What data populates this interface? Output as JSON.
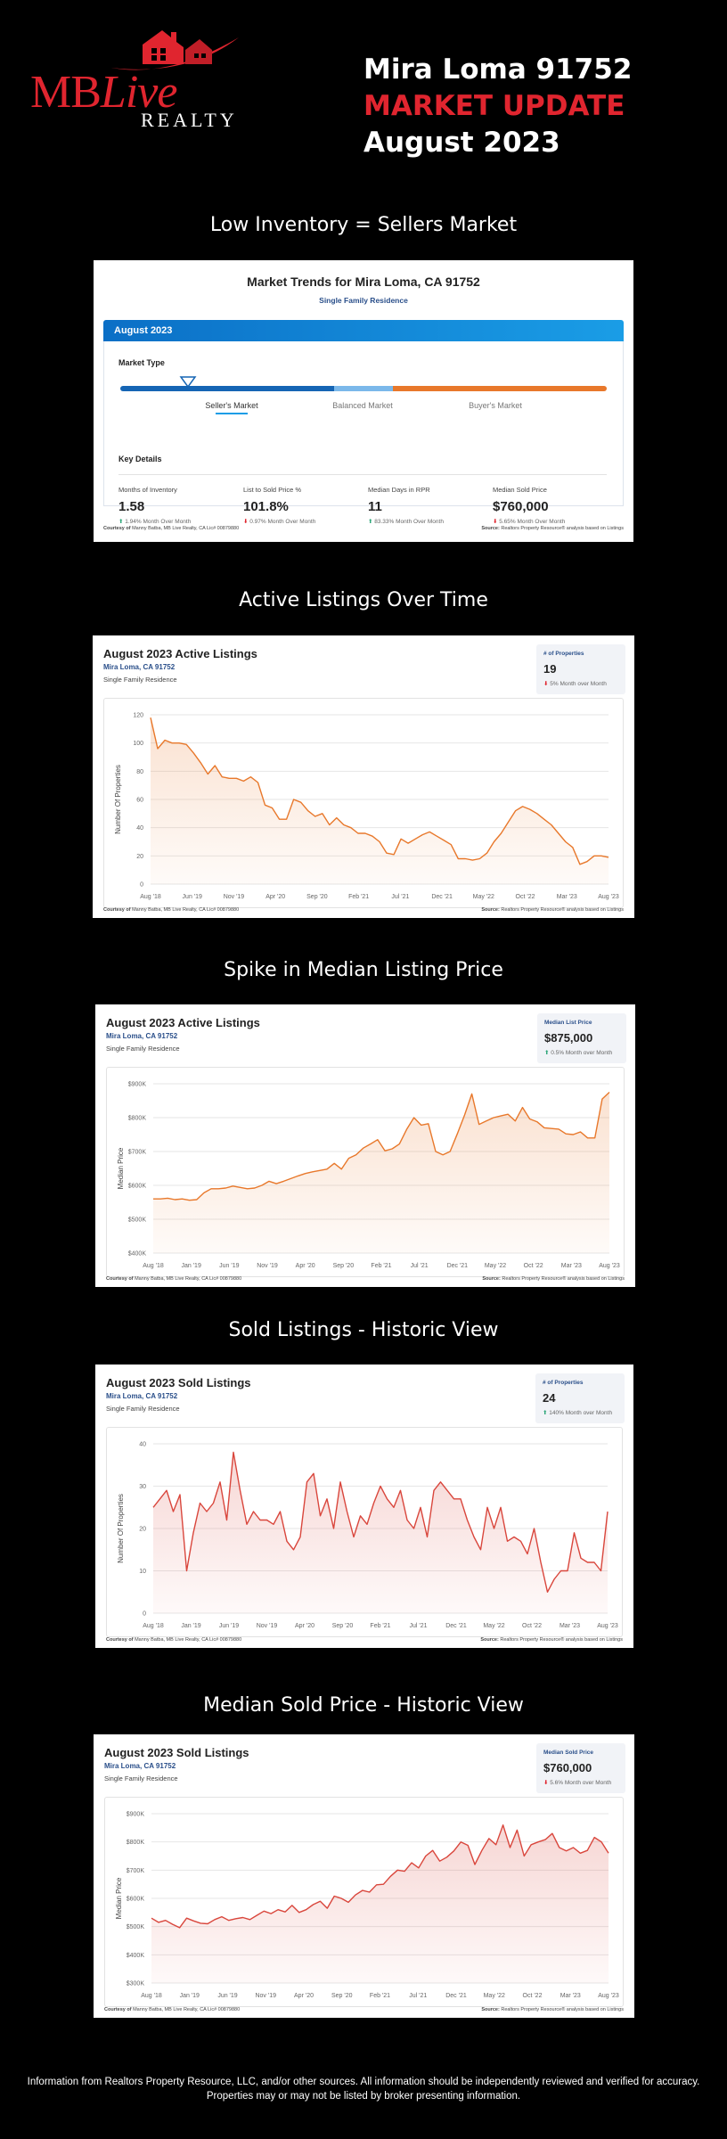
{
  "logo": {
    "brand_mb": "MB",
    "brand_live": "Live",
    "brand_realty": "REALTY"
  },
  "header": {
    "line1": "Mira Loma 91752",
    "line2": "MARKET UPDATE",
    "line3": "August 2023"
  },
  "colors": {
    "brand_red": "#e0252f",
    "orange": "#e8782b",
    "blue": "#0b6fc6",
    "red_line": "#d9463c"
  },
  "sections": [
    "Low Inventory = Sellers Market",
    "Active Listings Over Time",
    "Spike in Median Listing Price",
    "Sold Listings - Historic View",
    "Median Sold Price - Historic View"
  ],
  "market": {
    "title": "Market Trends for Mira Loma, CA 91752",
    "subtitle": "Single Family Residence",
    "month": "August 2023",
    "market_type_label": "Market Type",
    "categories": [
      "Seller's Market",
      "Balanced Market",
      "Buyer's Market"
    ],
    "selected": "Seller's Market",
    "indicator_position": 0.14,
    "key_details_label": "Key Details",
    "details": [
      {
        "label": "Months of Inventory",
        "value": "1.58",
        "change": "1.94%",
        "dir": "up",
        "suffix": "Month Over Month"
      },
      {
        "label": "List to Sold Price %",
        "value": "101.8%",
        "change": "0.97%",
        "dir": "down",
        "suffix": "Month Over Month"
      },
      {
        "label": "Median Days in RPR",
        "value": "11",
        "change": "83.33%",
        "dir": "up",
        "suffix": "Month Over Month"
      },
      {
        "label": "Median Sold Price",
        "value": "$760,000",
        "change": "5.65%",
        "dir": "down",
        "suffix": "Month Over Month"
      }
    ],
    "courtesy_label": "Courtesy of",
    "courtesy": "Manny Batba, MB Live Realty, CA Lic# 00879880",
    "source_label": "Source:",
    "source": "Realtors Property Resource® analysis based on Listings"
  },
  "cards": [
    {
      "title": "August 2023 Active Listings",
      "location": "Mira Loma, CA 91752",
      "property_type": "Single Family Residence",
      "stat_label": "# of Properties",
      "stat_value": "19",
      "stat_change": "5% Month over Month",
      "stat_dir": "down",
      "courtesy_label": "Courtesy of",
      "courtesy": "Manny Batba, MB Live Realty, CA Lic# 00879880",
      "source_label": "Source:",
      "source": "Realtors Property Resource® analysis based on Listings"
    },
    {
      "title": "August 2023 Active Listings",
      "location": "Mira Loma, CA 91752",
      "property_type": "Single Family Residence",
      "stat_label": "Median List Price",
      "stat_value": "$875,000",
      "stat_change": "0.5% Month over Month",
      "stat_dir": "up",
      "courtesy_label": "Courtesy of",
      "courtesy": "Manny Batba, MB Live Realty, CA Lic# 00879880",
      "source_label": "Source:",
      "source": "Realtors Property Resource® analysis based on Listings"
    },
    {
      "title": "August 2023 Sold Listings",
      "location": "Mira Loma, CA 91752",
      "property_type": "Single Family Residence",
      "stat_label": "# of Properties",
      "stat_value": "24",
      "stat_change": "140% Month over Month",
      "stat_dir": "up",
      "courtesy_label": "Courtesy of",
      "courtesy": "Manny Batba, MB Live Realty, CA Lic# 00879880",
      "source_label": "Source:",
      "source": "Realtors Property Resource® analysis based on Listings"
    },
    {
      "title": "August 2023 Sold Listings",
      "location": "Mira Loma, CA 91752",
      "property_type": "Single Family Residence",
      "stat_label": "Median Sold Price",
      "stat_value": "$760,000",
      "stat_change": "5.6% Month over Month",
      "stat_dir": "down",
      "courtesy_label": "Courtesy of",
      "courtesy": "Manny Batba, MB Live Realty, CA Lic# 00879880",
      "source_label": "Source:",
      "source": "Realtors Property Resource® analysis based on Listings"
    }
  ],
  "chart_data": [
    {
      "type": "area",
      "ylabel": "Number Of Properties",
      "ylim": [
        0,
        120
      ],
      "yticks": [
        "0",
        "20",
        "40",
        "60",
        "80",
        "100",
        "120"
      ],
      "xticks": [
        "Aug '18",
        "Jun '19",
        "Nov '19",
        "Apr '20",
        "Sep '20",
        "Feb '21",
        "Jul '21",
        "Dec '21",
        "May '22",
        "Oct '22",
        "Mar '23",
        "Aug '23"
      ],
      "color": "#e8782b",
      "values": [
        118,
        96,
        102,
        100,
        100,
        99,
        93,
        86,
        78,
        84,
        76,
        75,
        75,
        73,
        76,
        72,
        56,
        54,
        46,
        46,
        60,
        58,
        52,
        48,
        50,
        42,
        47,
        42,
        40,
        36,
        36,
        34,
        30,
        22,
        21,
        32,
        29,
        32,
        35,
        37,
        34,
        31,
        28,
        18,
        18,
        17,
        18,
        22,
        30,
        36,
        44,
        52,
        55,
        53,
        50,
        46,
        42,
        36,
        30,
        26,
        14,
        16,
        20,
        20,
        19
      ],
      "grid": true
    },
    {
      "type": "area",
      "ylabel": "Median Price",
      "ylim": [
        400000,
        900000
      ],
      "yticks": [
        "$400K",
        "$500K",
        "$600K",
        "$700K",
        "$800K",
        "$900K"
      ],
      "xticks": [
        "Aug '18",
        "Jan '19",
        "Jun '19",
        "Nov '19",
        "Apr '20",
        "Sep '20",
        "Feb '21",
        "Jul '21",
        "Dec '21",
        "May '22",
        "Oct '22",
        "Mar '23",
        "Aug '23"
      ],
      "color": "#e8782b",
      "values": [
        560000,
        560000,
        562000,
        558000,
        560000,
        556000,
        558000,
        578000,
        590000,
        590000,
        592000,
        598000,
        594000,
        590000,
        592000,
        600000,
        612000,
        605000,
        612000,
        620000,
        628000,
        635000,
        640000,
        644000,
        648000,
        665000,
        648000,
        680000,
        690000,
        710000,
        722000,
        735000,
        702000,
        708000,
        722000,
        765000,
        800000,
        778000,
        782000,
        700000,
        690000,
        700000,
        752000,
        808000,
        870000,
        780000,
        790000,
        800000,
        805000,
        810000,
        790000,
        830000,
        796000,
        788000,
        770000,
        768000,
        766000,
        752000,
        750000,
        758000,
        740000,
        740000,
        855000,
        875000
      ],
      "grid": true
    },
    {
      "type": "area",
      "ylabel": "Number Of Properties",
      "ylim": [
        0,
        40
      ],
      "yticks": [
        "0",
        "10",
        "20",
        "30",
        "40"
      ],
      "xticks": [
        "Aug '18",
        "Jan '19",
        "Jun '19",
        "Nov '19",
        "Apr '20",
        "Sep '20",
        "Feb '21",
        "Jul '21",
        "Dec '21",
        "May '22",
        "Oct '22",
        "Mar '23",
        "Aug '23"
      ],
      "color": "#d9463c",
      "values": [
        25,
        27,
        29,
        24,
        28,
        10,
        19,
        26,
        24,
        26,
        31,
        22,
        38,
        29,
        21,
        24,
        22,
        22,
        21,
        24,
        17,
        15,
        18,
        31,
        33,
        23,
        27,
        20,
        31,
        24,
        18,
        23,
        21,
        26,
        30,
        27,
        25,
        29,
        22,
        20,
        25,
        18,
        29,
        31,
        29,
        27,
        27,
        22,
        18,
        15,
        25,
        20,
        25,
        17,
        18,
        17,
        14,
        20,
        12,
        5,
        8,
        10,
        10,
        19,
        13,
        12,
        12,
        10,
        24
      ],
      "grid": true
    },
    {
      "type": "area",
      "ylabel": "Median Price",
      "ylim": [
        300000,
        900000
      ],
      "yticks": [
        "$300K",
        "$400K",
        "$500K",
        "$600K",
        "$700K",
        "$800K",
        "$900K"
      ],
      "xticks": [
        "Aug '18",
        "Jan '19",
        "Jun '19",
        "Nov '19",
        "Apr '20",
        "Sep '20",
        "Feb '21",
        "Jul '21",
        "Dec '21",
        "May '22",
        "Oct '22",
        "Mar '23",
        "Aug '23"
      ],
      "color": "#d9463c",
      "values": [
        530000,
        515000,
        522000,
        508000,
        496000,
        530000,
        520000,
        512000,
        510000,
        525000,
        535000,
        522000,
        528000,
        532000,
        525000,
        540000,
        555000,
        546000,
        560000,
        552000,
        575000,
        550000,
        560000,
        578000,
        590000,
        565000,
        608000,
        600000,
        586000,
        612000,
        628000,
        622000,
        648000,
        650000,
        678000,
        700000,
        696000,
        726000,
        708000,
        750000,
        770000,
        732000,
        746000,
        768000,
        800000,
        788000,
        720000,
        770000,
        812000,
        790000,
        860000,
        780000,
        842000,
        750000,
        790000,
        800000,
        808000,
        830000,
        780000,
        768000,
        780000,
        760000,
        770000,
        816000,
        800000,
        760000
      ],
      "grid": true
    }
  ],
  "disclaimer": "Information from Realtors Property Resource, LLC, and/or other sources. All information should be independently reviewed and verified for accuracy. Properties may or may not be listed by broker presenting information."
}
